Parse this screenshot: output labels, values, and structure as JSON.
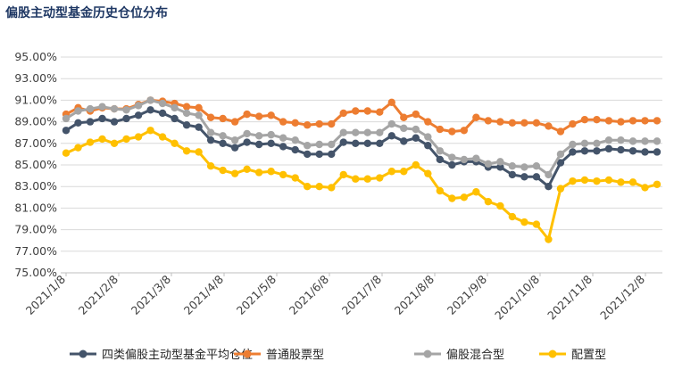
{
  "chart_data": {
    "type": "line",
    "title": "偏股主动型基金历史仓位分布",
    "xlabel": "",
    "ylabel": "",
    "ylim": [
      75.0,
      95.0
    ],
    "y_ticks": [
      "75.00%",
      "77.00%",
      "79.00%",
      "81.00%",
      "83.00%",
      "85.00%",
      "87.00%",
      "89.00%",
      "91.00%",
      "93.00%",
      "95.00%"
    ],
    "x_ticks": [
      "2021/1/8",
      "2021/2/8",
      "2021/3/8",
      "2021/4/8",
      "2021/5/8",
      "2021/6/8",
      "2021/7/8",
      "2021/8/8",
      "2021/9/8",
      "2021/10/8",
      "2021/11/8",
      "2021/12/8"
    ],
    "grid": true,
    "legend_position": "bottom",
    "series": [
      {
        "name": "四类偏股主动型基金平均仓位",
        "color": "#44546a",
        "values": [
          88.2,
          88.9,
          89.0,
          89.3,
          89.0,
          89.3,
          89.6,
          90.1,
          89.8,
          89.3,
          88.7,
          88.5,
          87.3,
          87.0,
          86.6,
          87.1,
          86.9,
          87.0,
          86.7,
          86.4,
          86.0,
          86.0,
          86.0,
          87.1,
          87.0,
          87.0,
          87.0,
          87.7,
          87.2,
          87.5,
          86.8,
          85.5,
          85.0,
          85.3,
          85.3,
          84.8,
          84.8,
          84.1,
          83.9,
          83.9,
          83.0,
          85.2,
          86.2,
          86.3,
          86.3,
          86.5,
          86.4,
          86.3,
          86.2,
          86.2
        ]
      },
      {
        "name": "普通股票型",
        "color": "#ed7d31",
        "values": [
          89.7,
          90.3,
          90.0,
          90.3,
          90.2,
          90.2,
          90.6,
          91.0,
          90.9,
          90.7,
          90.4,
          90.3,
          89.4,
          89.3,
          89.0,
          89.7,
          89.5,
          89.6,
          89.0,
          88.9,
          88.7,
          88.8,
          88.8,
          89.8,
          90.0,
          90.0,
          89.9,
          90.8,
          89.4,
          89.7,
          89.0,
          88.3,
          88.1,
          88.2,
          89.4,
          89.1,
          89.0,
          88.9,
          88.9,
          88.9,
          88.6,
          88.1,
          88.8,
          89.2,
          89.2,
          89.1,
          89.0,
          89.1,
          89.1,
          89.1
        ]
      },
      {
        "name": "偏股混合型",
        "color": "#a5a5a5",
        "values": [
          89.3,
          90.0,
          90.2,
          90.4,
          90.2,
          90.1,
          90.5,
          91.0,
          90.7,
          90.3,
          89.8,
          89.6,
          88.0,
          87.7,
          87.3,
          87.9,
          87.7,
          87.8,
          87.5,
          87.3,
          86.8,
          86.9,
          86.9,
          88.0,
          88.0,
          88.0,
          88.0,
          88.8,
          88.4,
          88.3,
          87.6,
          86.3,
          85.7,
          85.5,
          85.6,
          85.1,
          85.3,
          84.9,
          84.8,
          84.9,
          84.1,
          86.0,
          86.9,
          87.0,
          87.0,
          87.3,
          87.3,
          87.2,
          87.2,
          87.2
        ]
      },
      {
        "name": "配置型",
        "color": "#ffc000",
        "values": [
          86.1,
          86.6,
          87.1,
          87.4,
          87.0,
          87.4,
          87.6,
          88.2,
          87.6,
          87.0,
          86.3,
          86.2,
          84.9,
          84.5,
          84.2,
          84.6,
          84.3,
          84.4,
          84.1,
          83.8,
          83.0,
          83.0,
          82.9,
          84.1,
          83.7,
          83.7,
          83.8,
          84.4,
          84.4,
          85.0,
          84.2,
          82.6,
          81.9,
          82.0,
          82.5,
          81.6,
          81.2,
          80.2,
          79.7,
          79.5,
          78.1,
          82.8,
          83.5,
          83.6,
          83.5,
          83.6,
          83.4,
          83.4,
          82.9,
          83.2
        ]
      }
    ]
  }
}
